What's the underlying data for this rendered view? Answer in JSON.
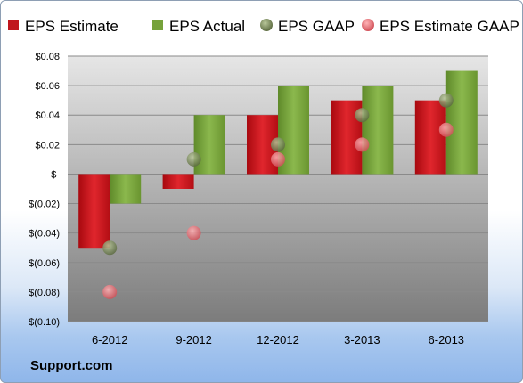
{
  "chart_data": {
    "type": "bar",
    "title": "",
    "xlabel": "",
    "ylabel": "",
    "categories": [
      "6-2012",
      "9-2012",
      "12-2012",
      "3-2013",
      "6-2013"
    ],
    "ylim": [
      -0.1,
      0.08
    ],
    "yticks": [
      0.08,
      0.06,
      0.04,
      0.02,
      0.0,
      -0.02,
      -0.04,
      -0.06,
      -0.08,
      -0.1
    ],
    "ytick_labels": [
      "$0.08",
      "$0.06",
      "$0.04",
      "$0.02",
      "$-",
      "$(0.02)",
      "$(0.04)",
      "$(0.06)",
      "$(0.08)",
      "$(0.10)"
    ],
    "grid": true,
    "legend_position": "top",
    "series": [
      {
        "name": "EPS Estimate",
        "kind": "bar",
        "color": "#c0161d",
        "values": [
          -0.05,
          -0.01,
          0.04,
          0.05,
          0.05
        ]
      },
      {
        "name": "EPS Actual",
        "kind": "bar",
        "color": "#76a23b",
        "values": [
          -0.02,
          0.04,
          0.06,
          0.06,
          0.07
        ]
      },
      {
        "name": "EPS GAAP",
        "kind": "marker",
        "color": "#7b8a5b",
        "values": [
          -0.05,
          0.01,
          0.02,
          0.04,
          0.05
        ]
      },
      {
        "name": "EPS Estimate GAAP",
        "kind": "marker",
        "color": "#e2767d",
        "values": [
          -0.08,
          -0.04,
          0.01,
          0.02,
          0.03
        ]
      }
    ]
  },
  "footer": {
    "company": "Support.com"
  }
}
